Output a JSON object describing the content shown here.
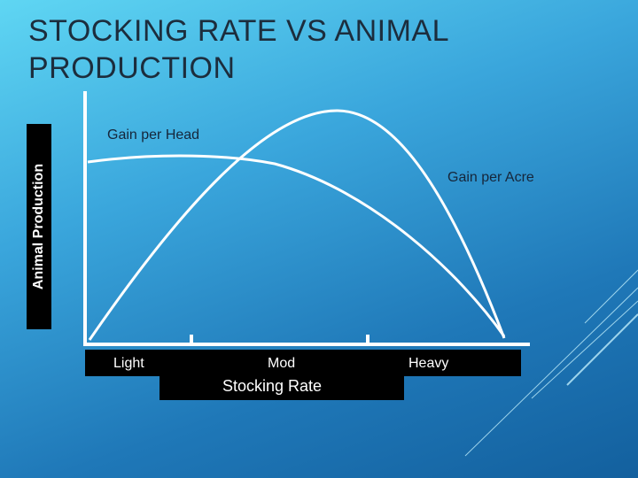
{
  "slide": {
    "title": "STOCKING RATE VS ANIMAL PRODUCTION"
  },
  "diagram": {
    "y_axis_label": "Animal Production",
    "x_axis_label": "Stocking Rate",
    "x_ticks": [
      "Light",
      "Mod",
      "Heavy"
    ],
    "curves": [
      {
        "label": "Gain per Head"
      },
      {
        "label": "Gain per Acre"
      }
    ],
    "colors": {
      "axis": "#ffffff",
      "curve": "#ffffff",
      "label_box": "#000000"
    }
  }
}
